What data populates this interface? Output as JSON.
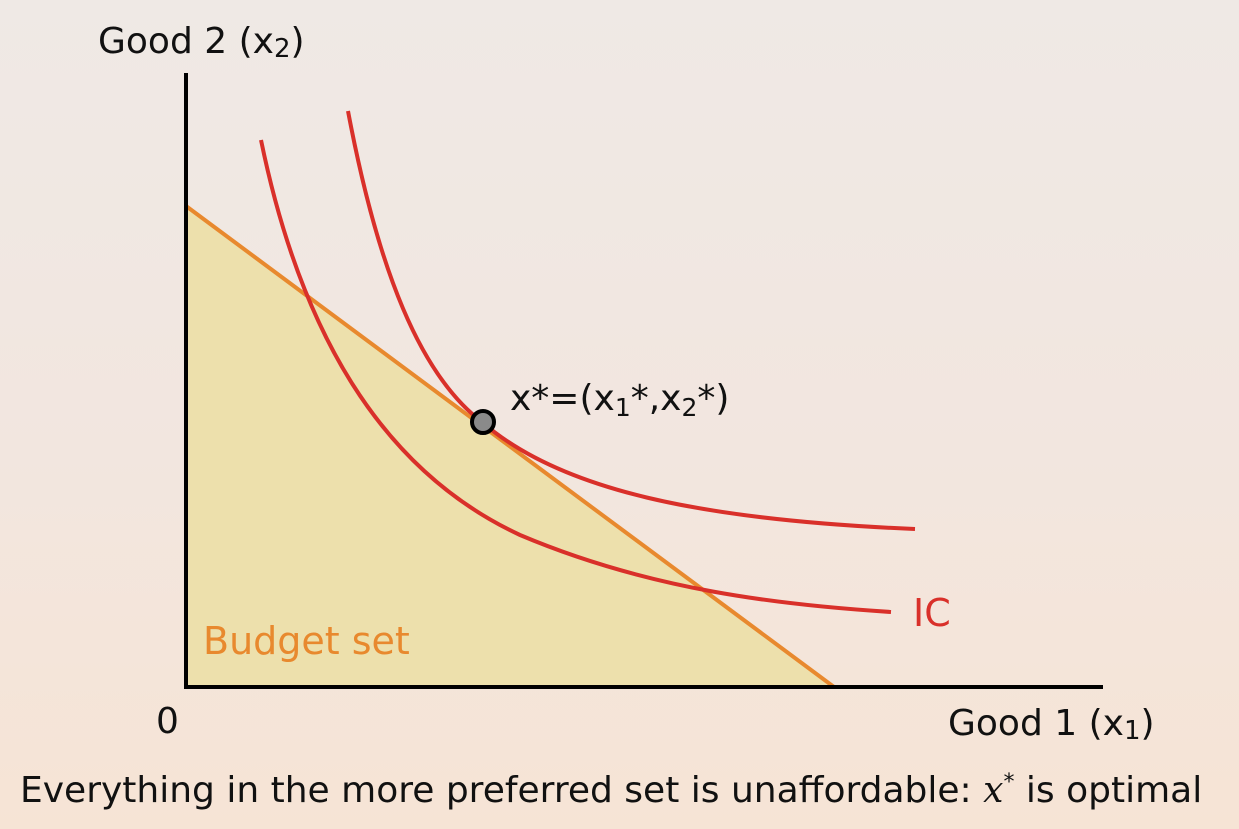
{
  "axes": {
    "y_label": "Good 2 (x",
    "y_label_sub": "2",
    "y_label_close": ")",
    "x_label": "Good 1 (x",
    "x_label_sub": "1",
    "x_label_close": ")",
    "origin": "0"
  },
  "budget_set": {
    "label": "Budget set",
    "color": "#e8892e",
    "fill": "#ede0ac"
  },
  "indifference_curve": {
    "label": "IC",
    "color": "#d9302a"
  },
  "optimal_point": {
    "label_a": "x*=(x",
    "label_sub1": "1",
    "label_b": "*,x",
    "label_sub2": "2",
    "label_c": "*)",
    "fill": "#8a8a8a"
  },
  "caption": {
    "before": "Everything in the more preferred set is unaffordable: ",
    "var": "x",
    "sup": "*",
    "after": " is optimal"
  }
}
